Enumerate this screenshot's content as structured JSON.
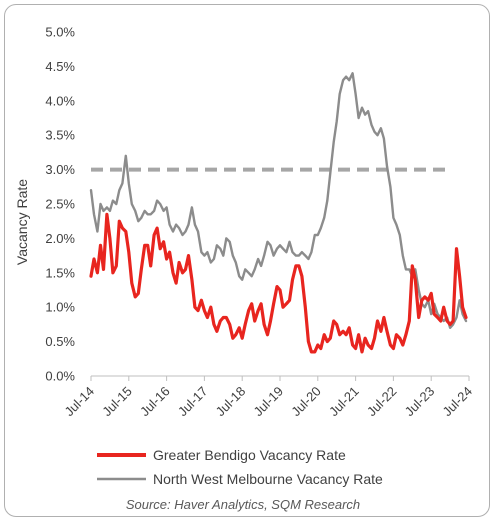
{
  "chart_data": {
    "type": "line",
    "title": "",
    "xlabel": "",
    "ylabel": "Vacancy Rate",
    "ylim": [
      0,
      5
    ],
    "y_ticks": [
      "0.0%",
      "0.5%",
      "1.0%",
      "1.5%",
      "2.0%",
      "2.5%",
      "3.0%",
      "3.5%",
      "4.0%",
      "4.5%",
      "5.0%"
    ],
    "x_ticks": [
      "Jul-14",
      "Jul-15",
      "Jul-16",
      "Jul-17",
      "Jul-18",
      "Jul-19",
      "Jul-20",
      "Jul-21",
      "Jul-22",
      "Jul-23",
      "Jul-24"
    ],
    "grid": false,
    "legend_position": "bottom",
    "reference_line": {
      "value": 3.0,
      "style": "dashed",
      "color": "#a6a6a6"
    },
    "source": "Source: Haver Analytics, SQM Research",
    "series": [
      {
        "name": "Greater Bendigo Vacancy Rate",
        "color": "#e8251f",
        "points": [
          [
            2014.5,
            1.45
          ],
          [
            2014.58,
            1.7
          ],
          [
            2014.67,
            1.5
          ],
          [
            2014.75,
            1.9
          ],
          [
            2014.83,
            1.55
          ],
          [
            2014.92,
            2.35
          ],
          [
            2015.0,
            2.0
          ],
          [
            2015.08,
            1.5
          ],
          [
            2015.17,
            1.6
          ],
          [
            2015.25,
            2.25
          ],
          [
            2015.33,
            2.15
          ],
          [
            2015.42,
            2.1
          ],
          [
            2015.5,
            1.8
          ],
          [
            2015.58,
            1.35
          ],
          [
            2015.67,
            1.15
          ],
          [
            2015.75,
            1.2
          ],
          [
            2015.83,
            1.55
          ],
          [
            2015.92,
            1.9
          ],
          [
            2016.0,
            1.9
          ],
          [
            2016.08,
            1.6
          ],
          [
            2016.17,
            2.05
          ],
          [
            2016.25,
            2.15
          ],
          [
            2016.33,
            1.85
          ],
          [
            2016.42,
            1.95
          ],
          [
            2016.5,
            1.7
          ],
          [
            2016.58,
            1.8
          ],
          [
            2016.67,
            1.5
          ],
          [
            2016.75,
            1.35
          ],
          [
            2016.83,
            1.65
          ],
          [
            2016.92,
            1.5
          ],
          [
            2017.0,
            1.55
          ],
          [
            2017.08,
            1.75
          ],
          [
            2017.17,
            1.4
          ],
          [
            2017.25,
            1.0
          ],
          [
            2017.33,
            0.95
          ],
          [
            2017.42,
            1.1
          ],
          [
            2017.5,
            0.95
          ],
          [
            2017.58,
            0.85
          ],
          [
            2017.67,
            1.0
          ],
          [
            2017.75,
            0.75
          ],
          [
            2017.83,
            0.65
          ],
          [
            2017.92,
            0.8
          ],
          [
            2018.0,
            0.85
          ],
          [
            2018.08,
            0.85
          ],
          [
            2018.17,
            0.75
          ],
          [
            2018.25,
            0.55
          ],
          [
            2018.33,
            0.6
          ],
          [
            2018.42,
            0.7
          ],
          [
            2018.5,
            0.55
          ],
          [
            2018.58,
            0.75
          ],
          [
            2018.67,
            0.95
          ],
          [
            2018.75,
            1.05
          ],
          [
            2018.83,
            0.8
          ],
          [
            2018.92,
            0.95
          ],
          [
            2019.0,
            1.05
          ],
          [
            2019.08,
            0.75
          ],
          [
            2019.17,
            0.6
          ],
          [
            2019.25,
            0.8
          ],
          [
            2019.33,
            1.05
          ],
          [
            2019.42,
            1.3
          ],
          [
            2019.5,
            1.25
          ],
          [
            2019.58,
            1.0
          ],
          [
            2019.67,
            1.05
          ],
          [
            2019.75,
            1.1
          ],
          [
            2019.83,
            1.4
          ],
          [
            2019.92,
            1.6
          ],
          [
            2020.0,
            1.6
          ],
          [
            2020.08,
            1.45
          ],
          [
            2020.17,
            1.0
          ],
          [
            2020.25,
            0.5
          ],
          [
            2020.33,
            0.35
          ],
          [
            2020.42,
            0.35
          ],
          [
            2020.5,
            0.45
          ],
          [
            2020.58,
            0.4
          ],
          [
            2020.67,
            0.6
          ],
          [
            2020.75,
            0.5
          ],
          [
            2020.83,
            0.55
          ],
          [
            2020.92,
            0.8
          ],
          [
            2021.0,
            0.75
          ],
          [
            2021.08,
            0.6
          ],
          [
            2021.17,
            0.65
          ],
          [
            2021.25,
            0.6
          ],
          [
            2021.33,
            0.7
          ],
          [
            2021.42,
            0.45
          ],
          [
            2021.5,
            0.4
          ],
          [
            2021.58,
            0.6
          ],
          [
            2021.67,
            0.35
          ],
          [
            2021.75,
            0.55
          ],
          [
            2021.83,
            0.45
          ],
          [
            2021.92,
            0.4
          ],
          [
            2022.0,
            0.55
          ],
          [
            2022.08,
            0.8
          ],
          [
            2022.17,
            0.65
          ],
          [
            2022.25,
            0.85
          ],
          [
            2022.33,
            0.65
          ],
          [
            2022.42,
            0.45
          ],
          [
            2022.5,
            0.4
          ],
          [
            2022.58,
            0.6
          ],
          [
            2022.67,
            0.55
          ],
          [
            2022.75,
            0.45
          ],
          [
            2022.83,
            0.6
          ],
          [
            2022.92,
            0.8
          ],
          [
            2023.0,
            1.6
          ],
          [
            2023.08,
            1.4
          ],
          [
            2023.17,
            0.85
          ],
          [
            2023.25,
            1.1
          ],
          [
            2023.33,
            1.15
          ],
          [
            2023.42,
            1.1
          ],
          [
            2023.5,
            1.2
          ],
          [
            2023.58,
            0.9
          ],
          [
            2023.67,
            0.85
          ],
          [
            2023.75,
            0.8
          ],
          [
            2023.83,
            1.0
          ],
          [
            2023.92,
            0.8
          ],
          [
            2024.0,
            0.75
          ],
          [
            2024.08,
            0.8
          ],
          [
            2024.17,
            1.85
          ],
          [
            2024.25,
            1.45
          ],
          [
            2024.33,
            1.0
          ],
          [
            2024.42,
            0.85
          ]
        ]
      },
      {
        "name": "North West Melbourne Vacancy Rate",
        "color": "#8c8c8c",
        "points": [
          [
            2014.5,
            2.7
          ],
          [
            2014.58,
            2.35
          ],
          [
            2014.67,
            2.1
          ],
          [
            2014.75,
            2.5
          ],
          [
            2014.83,
            2.4
          ],
          [
            2014.92,
            2.45
          ],
          [
            2015.0,
            2.4
          ],
          [
            2015.08,
            2.55
          ],
          [
            2015.17,
            2.5
          ],
          [
            2015.25,
            2.7
          ],
          [
            2015.33,
            2.8
          ],
          [
            2015.42,
            3.2
          ],
          [
            2015.5,
            2.8
          ],
          [
            2015.58,
            2.5
          ],
          [
            2015.67,
            2.4
          ],
          [
            2015.75,
            2.25
          ],
          [
            2015.83,
            2.3
          ],
          [
            2015.92,
            2.4
          ],
          [
            2016.0,
            2.35
          ],
          [
            2016.08,
            2.35
          ],
          [
            2016.17,
            2.4
          ],
          [
            2016.25,
            2.55
          ],
          [
            2016.33,
            2.5
          ],
          [
            2016.42,
            2.4
          ],
          [
            2016.5,
            2.45
          ],
          [
            2016.58,
            2.2
          ],
          [
            2016.67,
            2.1
          ],
          [
            2016.75,
            2.2
          ],
          [
            2016.83,
            2.15
          ],
          [
            2016.92,
            2.05
          ],
          [
            2017.0,
            2.1
          ],
          [
            2017.08,
            2.2
          ],
          [
            2017.17,
            2.45
          ],
          [
            2017.25,
            2.2
          ],
          [
            2017.33,
            2.1
          ],
          [
            2017.42,
            1.8
          ],
          [
            2017.5,
            1.75
          ],
          [
            2017.58,
            1.8
          ],
          [
            2017.67,
            1.65
          ],
          [
            2017.75,
            1.7
          ],
          [
            2017.83,
            1.9
          ],
          [
            2017.92,
            1.85
          ],
          [
            2018.0,
            1.75
          ],
          [
            2018.08,
            2.0
          ],
          [
            2018.17,
            1.95
          ],
          [
            2018.25,
            1.75
          ],
          [
            2018.33,
            1.65
          ],
          [
            2018.42,
            1.45
          ],
          [
            2018.5,
            1.4
          ],
          [
            2018.58,
            1.55
          ],
          [
            2018.67,
            1.5
          ],
          [
            2018.75,
            1.45
          ],
          [
            2018.83,
            1.55
          ],
          [
            2018.92,
            1.7
          ],
          [
            2019.0,
            1.6
          ],
          [
            2019.08,
            1.75
          ],
          [
            2019.17,
            1.95
          ],
          [
            2019.25,
            1.9
          ],
          [
            2019.33,
            1.75
          ],
          [
            2019.42,
            1.85
          ],
          [
            2019.5,
            1.9
          ],
          [
            2019.58,
            1.85
          ],
          [
            2019.67,
            1.8
          ],
          [
            2019.75,
            1.95
          ],
          [
            2019.83,
            1.8
          ],
          [
            2019.92,
            1.75
          ],
          [
            2020.0,
            1.75
          ],
          [
            2020.08,
            1.8
          ],
          [
            2020.17,
            1.75
          ],
          [
            2020.25,
            1.7
          ],
          [
            2020.33,
            1.8
          ],
          [
            2020.42,
            2.05
          ],
          [
            2020.5,
            2.05
          ],
          [
            2020.58,
            2.15
          ],
          [
            2020.67,
            2.3
          ],
          [
            2020.75,
            2.55
          ],
          [
            2020.83,
            2.95
          ],
          [
            2020.92,
            3.4
          ],
          [
            2021.0,
            3.7
          ],
          [
            2021.08,
            4.1
          ],
          [
            2021.17,
            4.3
          ],
          [
            2021.25,
            4.35
          ],
          [
            2021.33,
            4.3
          ],
          [
            2021.42,
            4.4
          ],
          [
            2021.5,
            4.1
          ],
          [
            2021.58,
            3.75
          ],
          [
            2021.67,
            3.9
          ],
          [
            2021.75,
            3.8
          ],
          [
            2021.83,
            3.85
          ],
          [
            2021.92,
            3.65
          ],
          [
            2022.0,
            3.55
          ],
          [
            2022.08,
            3.5
          ],
          [
            2022.17,
            3.6
          ],
          [
            2022.25,
            3.45
          ],
          [
            2022.33,
            3.05
          ],
          [
            2022.42,
            2.75
          ],
          [
            2022.5,
            2.3
          ],
          [
            2022.58,
            2.2
          ],
          [
            2022.67,
            2.05
          ],
          [
            2022.75,
            1.75
          ],
          [
            2022.83,
            1.55
          ],
          [
            2022.92,
            1.55
          ],
          [
            2023.0,
            1.45
          ],
          [
            2023.08,
            1.55
          ],
          [
            2023.17,
            1.25
          ],
          [
            2023.25,
            1.05
          ],
          [
            2023.33,
            1.0
          ],
          [
            2023.42,
            1.1
          ],
          [
            2023.5,
            0.9
          ],
          [
            2023.58,
            1.05
          ],
          [
            2023.67,
            0.9
          ],
          [
            2023.75,
            0.85
          ],
          [
            2023.83,
            0.8
          ],
          [
            2023.92,
            0.85
          ],
          [
            2024.0,
            0.7
          ],
          [
            2024.08,
            0.75
          ],
          [
            2024.17,
            0.85
          ],
          [
            2024.25,
            1.1
          ],
          [
            2024.33,
            0.9
          ],
          [
            2024.42,
            0.8
          ]
        ]
      }
    ]
  }
}
